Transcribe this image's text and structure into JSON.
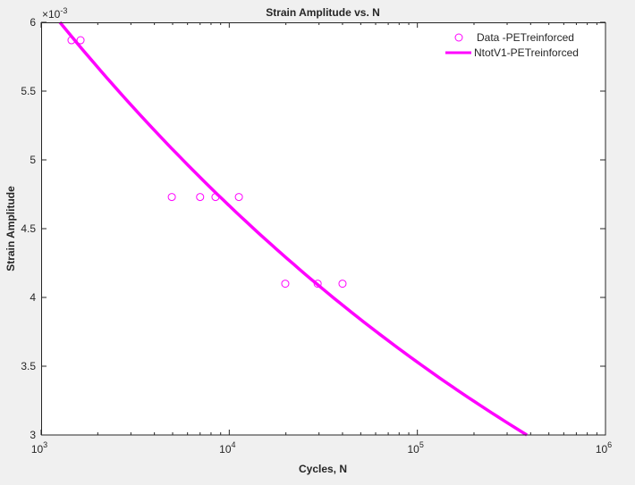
{
  "chart_data": {
    "type": "scatter",
    "title": "Strain Amplitude vs. N",
    "xlabel": "Cycles, N",
    "ylabel": "Strain Amplitude",
    "xscale": "log",
    "xlim": [
      1000,
      1000000
    ],
    "ylim": [
      0.003,
      0.006
    ],
    "y_exponent_label": "-3",
    "x_ticks": [
      {
        "base": "10",
        "exp": "3",
        "value": 1000
      },
      {
        "base": "10",
        "exp": "4",
        "value": 10000
      },
      {
        "base": "10",
        "exp": "5",
        "value": 100000
      },
      {
        "base": "10",
        "exp": "6",
        "value": 1000000
      }
    ],
    "y_ticks": [
      {
        "label": "3",
        "value": 0.003
      },
      {
        "label": "3.5",
        "value": 0.0035
      },
      {
        "label": "4",
        "value": 0.004
      },
      {
        "label": "4.5",
        "value": 0.0045
      },
      {
        "label": "5",
        "value": 0.005
      },
      {
        "label": "5.5",
        "value": 0.0055
      },
      {
        "label": "6",
        "value": 0.006
      }
    ],
    "grid": false,
    "legend_placement": "top-right",
    "series": [
      {
        "name": "Data -PETreinforced",
        "kind": "markers",
        "marker": "circle",
        "color": "#ff00ff",
        "x": [
          1450,
          1620,
          4950,
          7000,
          8450,
          11250,
          19850,
          29500,
          40000
        ],
        "y": [
          0.00587,
          0.00587,
          0.00473,
          0.00473,
          0.00473,
          0.00473,
          0.0041,
          0.0041,
          0.0041
        ]
      },
      {
        "name": "NtotV1-PETreinforced",
        "kind": "line",
        "color": "#ff00ff",
        "x": [
          1259,
          2000,
          5000,
          10000,
          20000,
          50000,
          100000,
          200000,
          382000
        ],
        "y": [
          0.006,
          0.00539,
          0.00483,
          0.00465,
          0.0042,
          0.00377,
          0.00355,
          0.00324,
          0.003
        ]
      }
    ]
  }
}
